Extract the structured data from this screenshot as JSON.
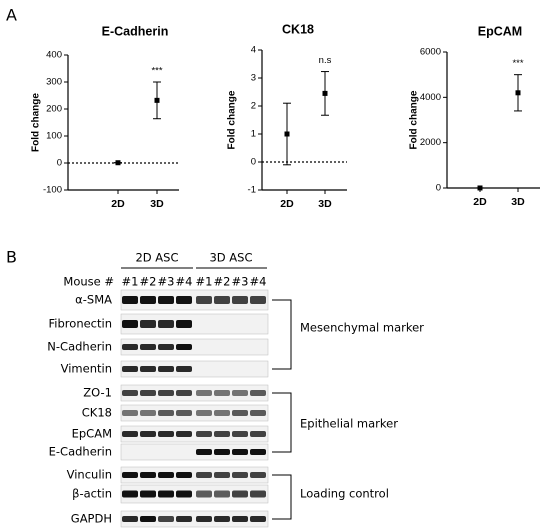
{
  "panels": [
    "A",
    "B"
  ],
  "chart_data": [
    {
      "type": "scatter",
      "title": "E-Cadherin",
      "ylabel": "Fold change",
      "categories": [
        "2D",
        "3D"
      ],
      "series": [
        {
          "color": "#000000",
          "values": [
            1,
            232
          ],
          "errors": [
            0,
            68
          ]
        }
      ],
      "ylim": [
        -100,
        400
      ],
      "yticks": [
        -100,
        0,
        100,
        200,
        300,
        400
      ],
      "hline": 0,
      "annotation": "***"
    },
    {
      "type": "scatter",
      "title": "CK18",
      "ylabel": "Fold change",
      "categories": [
        "2D",
        "3D"
      ],
      "series": [
        {
          "color": "#000000",
          "values": [
            1,
            2.45
          ],
          "errors": [
            1.1,
            0.78
          ]
        }
      ],
      "ylim": [
        -1,
        4
      ],
      "yticks": [
        -1,
        0,
        1,
        2,
        3,
        4
      ],
      "hline": 0,
      "annotation": "n.s"
    },
    {
      "type": "scatter",
      "title": "EpCAM",
      "ylabel": "Fold change",
      "categories": [
        "2D",
        "3D"
      ],
      "series": [
        {
          "color": "#000000",
          "values": [
            1,
            4200
          ],
          "errors": [
            0,
            800
          ]
        }
      ],
      "ylim": [
        0,
        6000
      ],
      "yticks": [
        0,
        2000,
        4000,
        6000
      ],
      "annotation": "***"
    }
  ],
  "blot": {
    "groups": [
      "2D ASC",
      "3D ASC"
    ],
    "lane_header": "Mouse #",
    "lanes": [
      "#1",
      "#2",
      "#3",
      "#4",
      "#1",
      "#2",
      "#3",
      "#4"
    ],
    "rows": [
      "α-SMA",
      "Fibronectin",
      "N-Cadherin",
      "Vimentin",
      "ZO-1",
      "CK18",
      "EpCAM",
      "E-Cadherin",
      "Vinculin",
      "β-actin",
      "GAPDH"
    ],
    "brackets": [
      "Mesenchymal marker",
      "Epithelial marker",
      "Loading control"
    ]
  }
}
